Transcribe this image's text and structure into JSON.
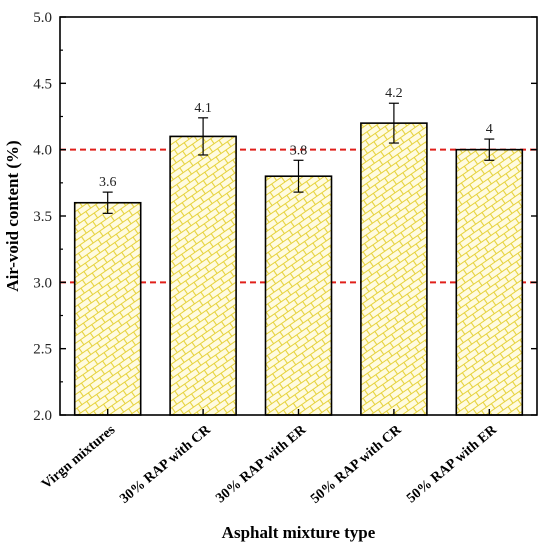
{
  "chart_data": {
    "type": "bar",
    "title": "",
    "xlabel": "Asphalt mixture type",
    "ylabel": "Air-void content (%)",
    "categories": [
      "Virgn mixtures",
      "30% RAP with CR",
      "30% RAP with ER",
      "50% RAP with CR",
      "50% RAP with ER"
    ],
    "values": [
      3.6,
      4.1,
      3.8,
      4.2,
      4.0
    ],
    "errors": [
      0.08,
      0.14,
      0.12,
      0.15,
      0.08
    ],
    "data_labels": [
      "3.6",
      "4.1",
      "3.8",
      "4.2",
      "4"
    ],
    "ylim": [
      2.0,
      5.0
    ],
    "yticks": [
      "2.0",
      "2.5",
      "3.0",
      "3.5",
      "4.0",
      "4.5",
      "5.0"
    ],
    "reference_lines": [
      3.0,
      4.0
    ],
    "grid": false,
    "colors": {
      "bar_fill": "#fffbe0",
      "bar_hatch": "#e6d23c",
      "bar_stroke": "#000000",
      "reference_line": "#e0201b"
    }
  }
}
